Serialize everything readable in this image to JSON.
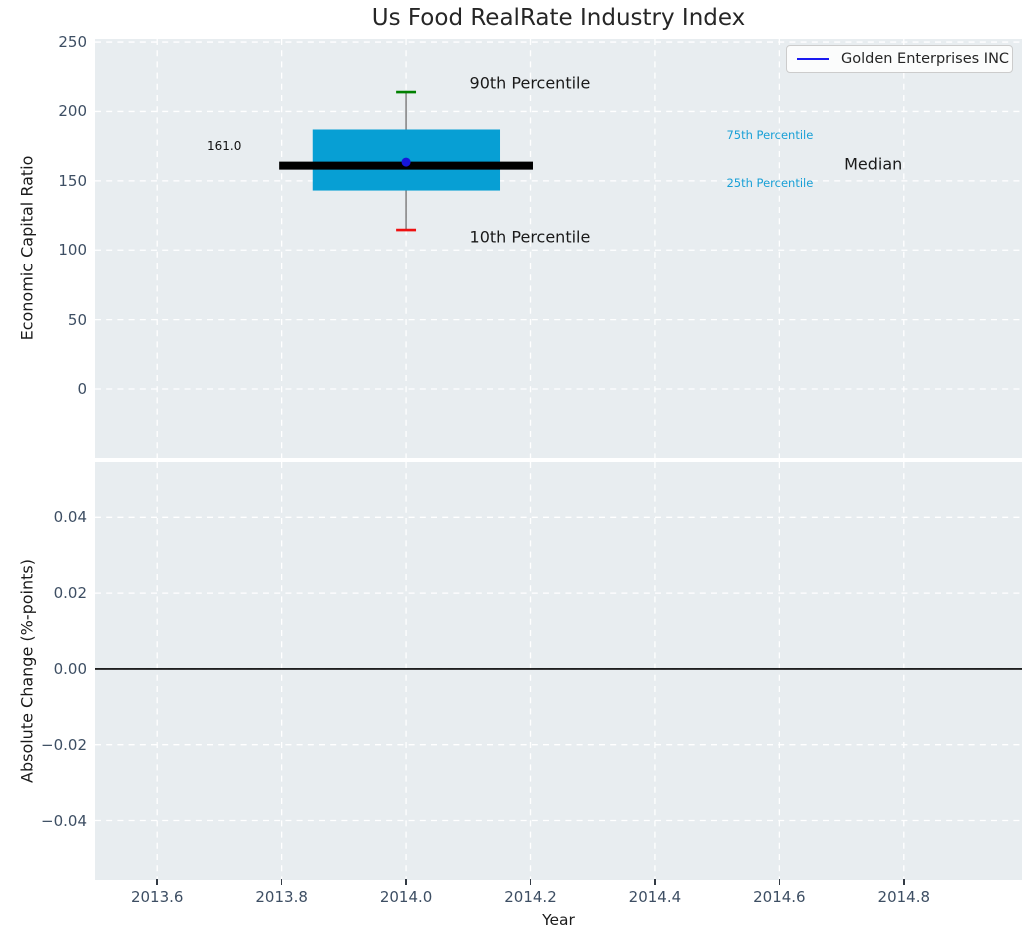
{
  "chart_data": [
    {
      "type": "boxplot",
      "title": "Us Food RealRate Industry Index",
      "ylabel": "Economic Capital Ratio",
      "xlim": [
        2013.5,
        2014.99
      ],
      "ylim": [
        -49.7,
        252.2
      ],
      "xticks": [
        2013.6,
        2013.8,
        2014.0,
        2014.2,
        2014.4,
        2014.6,
        2014.8
      ],
      "yticks": [
        0,
        50,
        100,
        150,
        200,
        250
      ],
      "ytick_labels": [
        "0",
        "50",
        "100",
        "150",
        "200",
        "250"
      ],
      "grid": true,
      "legend": {
        "label": "Golden Enterprises INC",
        "position": "upper right"
      },
      "box": {
        "x": 2014.0,
        "p10": 114.5,
        "p25": 143.0,
        "median": 161.0,
        "p75": 187.0,
        "p90": 214.0,
        "box_x_range": [
          2013.85,
          2014.151
        ],
        "median_x_range": [
          2013.796,
          2014.204
        ],
        "cap_halfwidth": 0.016
      },
      "company_point": {
        "x": 2014.0,
        "value": 161.0,
        "label": "161.0"
      },
      "annotations": [
        {
          "text": "90th Percentile",
          "x": 2014.102,
          "y": 220.5,
          "size": 16,
          "color": "#1a1a1a"
        },
        {
          "text": "10th Percentile",
          "x": 2014.102,
          "y": 109.5,
          "size": 16,
          "color": "#1a1a1a"
        },
        {
          "text": "75th Percentile",
          "x": 2014.515,
          "y": 183.0,
          "size": 11.5,
          "color": "#19a0d6"
        },
        {
          "text": "25th Percentile",
          "x": 2014.515,
          "y": 148.4,
          "size": 11.5,
          "color": "#19a0d6"
        },
        {
          "text": "Median",
          "x": 2014.704,
          "y": 162.0,
          "size": 16,
          "color": "#1a1a1a"
        },
        {
          "text": "161.0",
          "x": 2013.68,
          "y": 175.0,
          "size": 12,
          "color": "#111111"
        }
      ],
      "colors": {
        "box_fill": "#079fd4",
        "median_line": "#000000",
        "whisker": "#787878",
        "cap_upper": "#008000",
        "cap_lower": "#ee1111",
        "marker": "#1616dc",
        "legend_line": "#1a1af0",
        "axes_bg": "#e8edf0",
        "grid": "#ffffff",
        "tick_label": "#3d4e63"
      }
    },
    {
      "type": "line",
      "xlabel": "Year",
      "ylabel": "Absolute Change (%-points)",
      "xlim": [
        2013.5,
        2014.99
      ],
      "ylim": [
        -0.0557,
        0.0546
      ],
      "xticks": [
        2013.6,
        2013.8,
        2014.0,
        2014.2,
        2014.4,
        2014.6,
        2014.8
      ],
      "xtick_labels": [
        "2013.6",
        "2013.8",
        "2014.0",
        "2014.2",
        "2014.4",
        "2014.6",
        "2014.8"
      ],
      "yticks": [
        0.04,
        0.02,
        0.0,
        -0.02,
        -0.04
      ],
      "ytick_labels": [
        "0.04",
        "0.02",
        "0.00",
        "−0.02",
        "−0.04"
      ],
      "grid": true,
      "zero_line": 0.0,
      "series": []
    }
  ]
}
